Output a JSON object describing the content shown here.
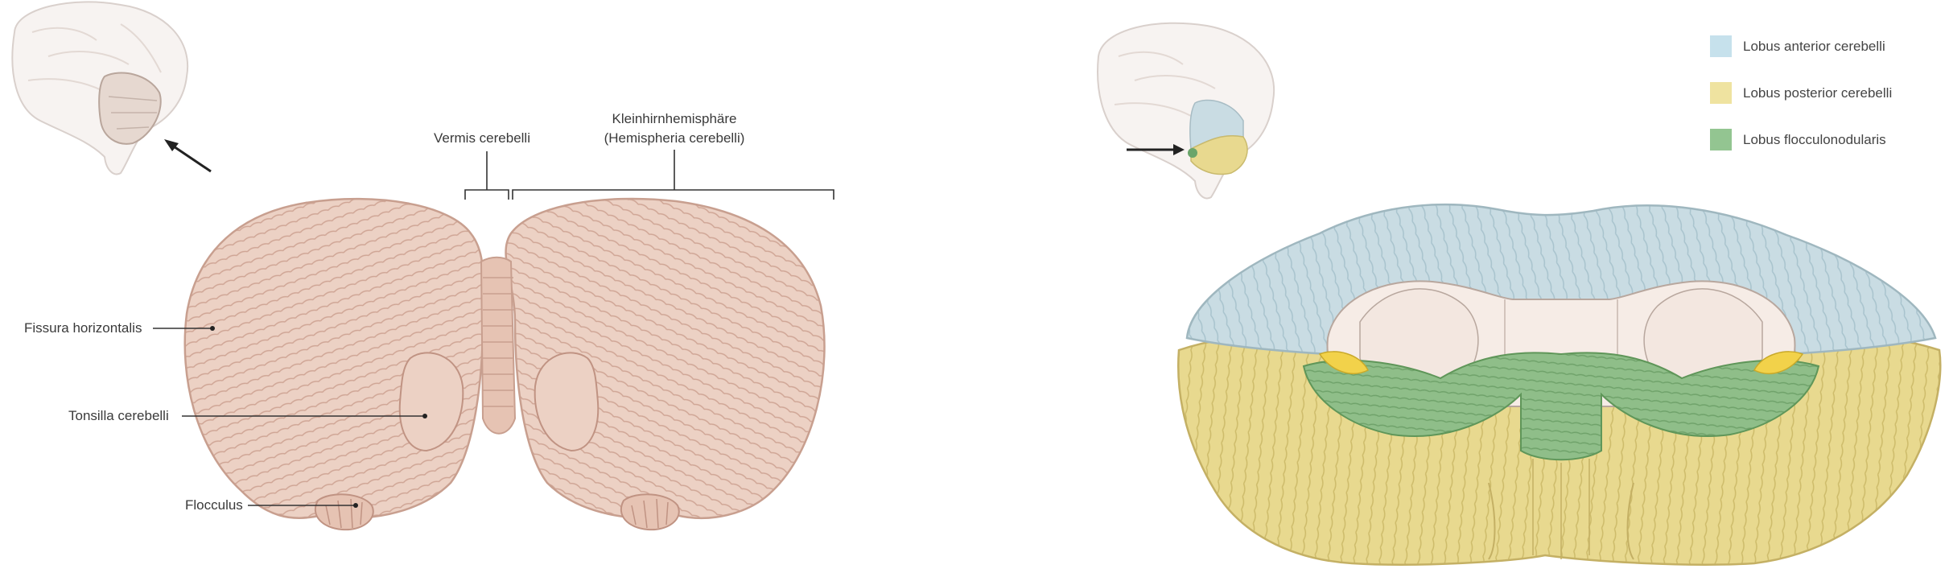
{
  "left_figure": {
    "labels": {
      "vermis": "Vermis cerebelli",
      "hemisphere_line1": "Kleinhirnhemisphäre",
      "hemisphere_line2": "(Hemispheria cerebelli)",
      "fissura": "Fissura horizontalis",
      "tonsilla": "Tonsilla cerebelli",
      "flocculus": "Flocculus"
    }
  },
  "right_figure": {
    "legend": [
      {
        "label": "Lobus anterior cerebelli",
        "color": "#c6e1ec"
      },
      {
        "label": "Lobus posterior cerebelli",
        "color": "#efe3a0"
      },
      {
        "label": "Lobus flocculonodularis",
        "color": "#93c591"
      }
    ]
  },
  "colors": {
    "cerebellum_pink": "#ecd1c4",
    "cerebellum_stroke": "#c89f8f",
    "anterior_blue": "#c9dce3",
    "posterior_yellow": "#e8d98f",
    "flocculonodular_green": "#8fbe89",
    "brainstem_cream": "#f6ece6"
  }
}
